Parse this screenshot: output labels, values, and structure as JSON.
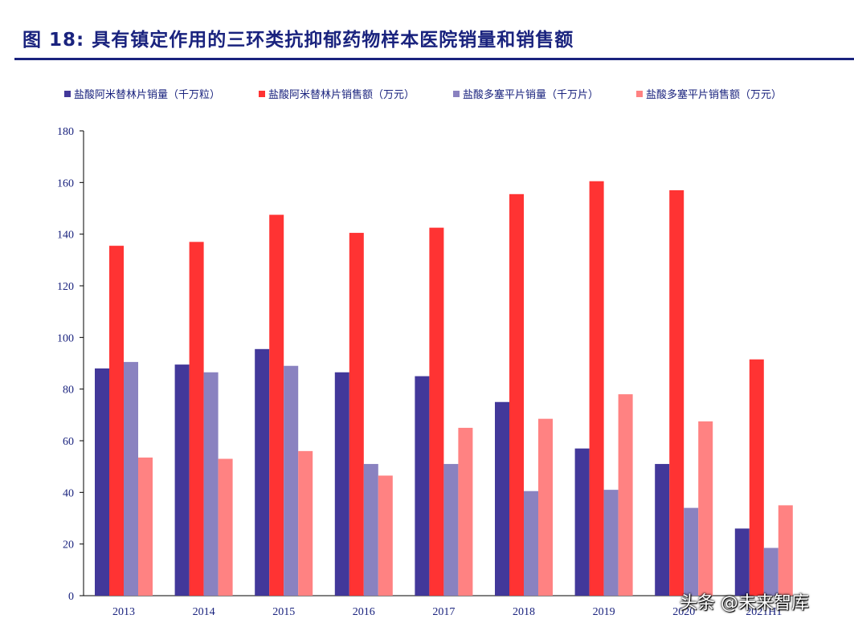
{
  "figure_title": "图 18:  具有镇定作用的三环类抗抑郁药物样本医院销量和销售额",
  "watermark": "头条 @未来智库",
  "chart_data": {
    "type": "bar",
    "title": "",
    "xlabel": "",
    "ylabel": "",
    "ylim": [
      0,
      180
    ],
    "yticks": [
      0,
      20,
      40,
      60,
      80,
      100,
      120,
      140,
      160,
      180
    ],
    "grid": false,
    "legend_position": "top",
    "categories": [
      "2013",
      "2014",
      "2015",
      "2016",
      "2017",
      "2018",
      "2019",
      "2020",
      "2021H1"
    ],
    "series": [
      {
        "name": "盐酸阿米替林片销量（千万粒）",
        "color": "#42389a",
        "values": [
          88,
          89.5,
          95.5,
          86.5,
          85,
          75,
          57,
          51,
          26
        ]
      },
      {
        "name": "盐酸阿米替林片销售额（万元）",
        "color": "#ff3333",
        "values": [
          135.5,
          137,
          147.5,
          140.5,
          142.5,
          155.5,
          160.5,
          157,
          91.5
        ]
      },
      {
        "name": "盐酸多塞平片销量（千万片）",
        "color": "#8a82c0",
        "values": [
          90.5,
          86.5,
          89,
          51,
          51,
          40.5,
          41,
          34,
          18.5
        ]
      },
      {
        "name": "盐酸多塞平片销售额（万元）",
        "color": "#ff8282",
        "values": [
          53.5,
          53,
          56,
          46.5,
          65,
          68.5,
          78,
          67.5,
          35
        ]
      }
    ]
  }
}
